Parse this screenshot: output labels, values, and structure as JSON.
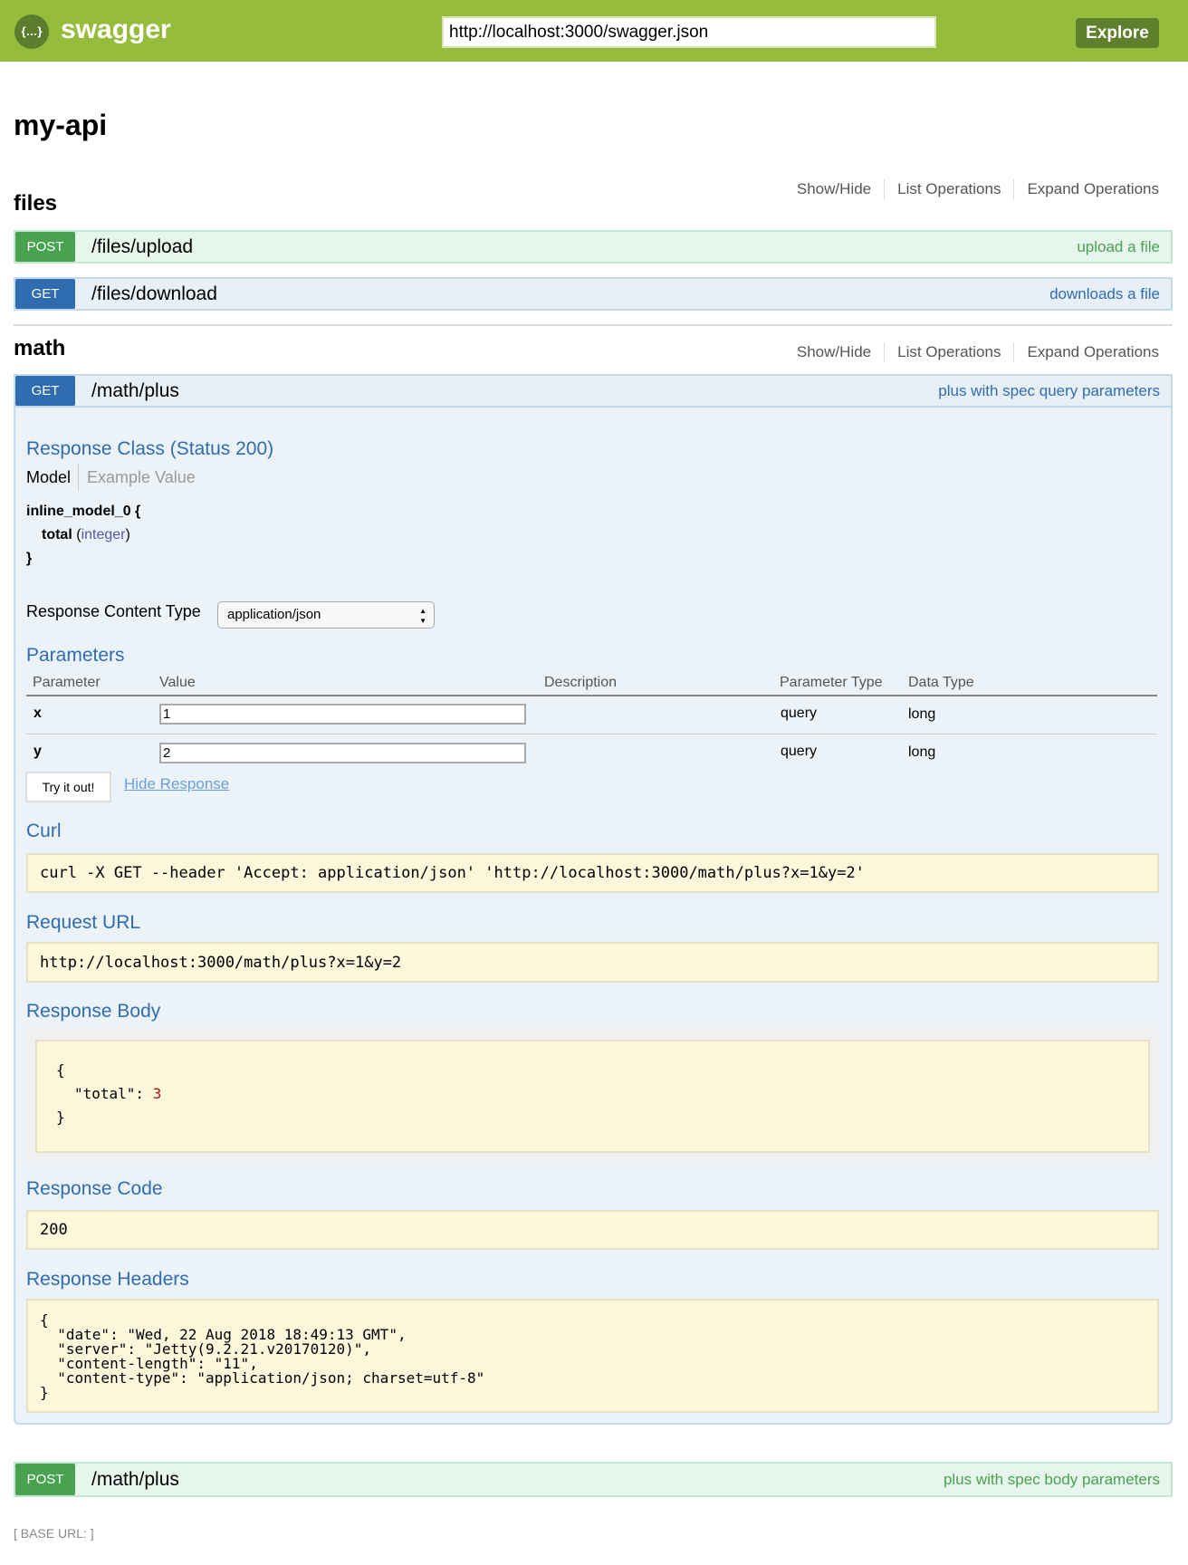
{
  "header": {
    "brand": "swagger",
    "logo_glyph": "{…}",
    "url": "http://localhost:3000/swagger.json",
    "explore_label": "Explore"
  },
  "api_title": "my-api",
  "tag_links": {
    "show_hide": "Show/Hide",
    "list": "List Operations",
    "expand": "Expand Operations"
  },
  "tags": [
    {
      "name": "files",
      "operations": [
        {
          "method": "POST",
          "path": "/files/upload",
          "summary": "upload a file"
        },
        {
          "method": "GET",
          "path": "/files/download",
          "summary": "downloads a file"
        }
      ]
    },
    {
      "name": "math",
      "operations": [
        {
          "method": "GET",
          "path": "/math/plus",
          "summary": "plus with spec query parameters"
        },
        {
          "method": "POST",
          "path": "/math/plus",
          "summary": "plus with spec body parameters"
        }
      ]
    }
  ],
  "expanded": {
    "response_class": "Response Class (Status 200)",
    "model_tab": "Model",
    "example_tab": "Example Value",
    "model_name": "inline_model_0 {",
    "model_field": "total",
    "model_type": "integer",
    "model_close": "}",
    "content_type_label": "Response Content Type",
    "content_type": "application/json",
    "parameters_heading": "Parameters",
    "param_columns": [
      "Parameter",
      "Value",
      "Description",
      "Parameter Type",
      "Data Type"
    ],
    "params": [
      {
        "name": "x",
        "value": "1",
        "description": "",
        "param_type": "query",
        "data_type": "long"
      },
      {
        "name": "y",
        "value": "2",
        "description": "",
        "param_type": "query",
        "data_type": "long"
      }
    ],
    "try_label": "Try it out!",
    "hide_label": "Hide Response",
    "curl_heading": "Curl",
    "curl": "curl -X GET --header 'Accept: application/json' 'http://localhost:3000/math/plus?x=1&y=2'",
    "request_url_heading": "Request URL",
    "request_url": "http://localhost:3000/math/plus?x=1&y=2",
    "response_body_heading": "Response Body",
    "body_open": "{",
    "body_key": "\"total\": ",
    "body_value": "3",
    "body_close": "}",
    "response_code_heading": "Response Code",
    "response_code": "200",
    "response_headers_heading": "Response Headers",
    "response_headers": "{\n  \"date\": \"Wed, 22 Aug 2018 18:49:13 GMT\",\n  \"server\": \"Jetty(9.2.21.v20170120)\",\n  \"content-length\": \"11\",\n  \"content-type\": \"application/json; charset=utf-8\"\n}"
  },
  "footer": {
    "base_url": "[ BASE URL: ]"
  },
  "colors": {
    "header": "#95bc3b",
    "post": "#49a24f",
    "get": "#2f6cb0",
    "code_bg": "#fcf6db"
  }
}
